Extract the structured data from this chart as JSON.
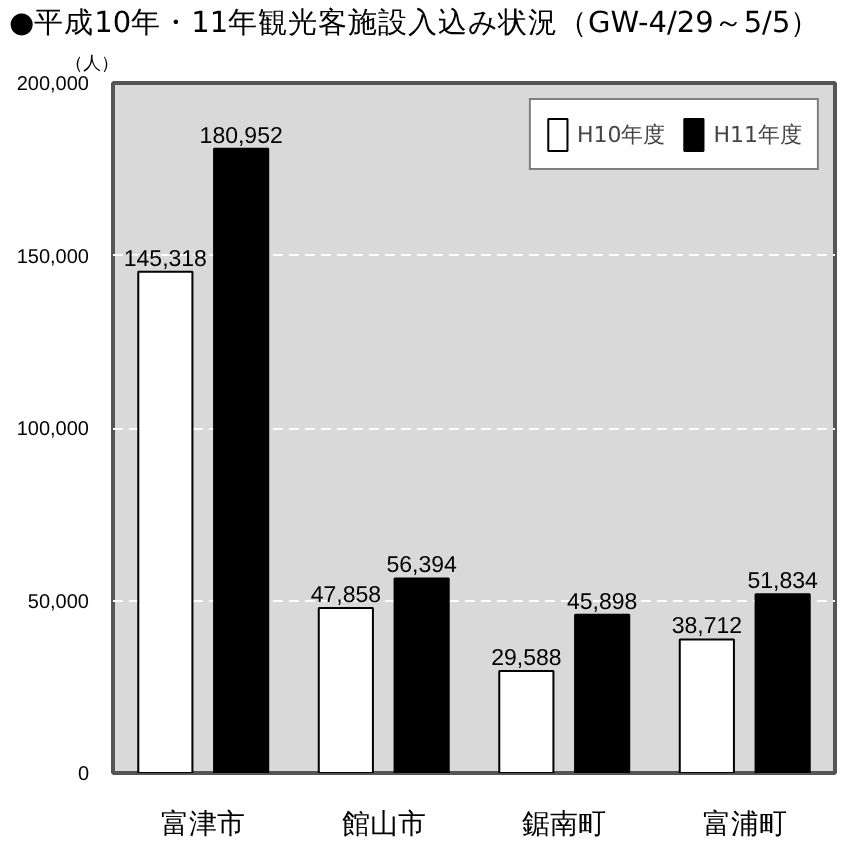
{
  "chart_data": {
    "type": "bar",
    "title": "●平成10年・11年観光客施設入込み状況（GW-4/29～5/5）",
    "ylabel": "（人）",
    "categories": [
      "富津市",
      "館山市",
      "鋸南町",
      "富浦町"
    ],
    "series": [
      {
        "name": "H10年度",
        "color": "#ffffff",
        "values": [
          145318,
          47858,
          29588,
          38712
        ],
        "value_labels": [
          "145,318",
          "47,858",
          "29,588",
          "38,712"
        ]
      },
      {
        "name": "H11年度",
        "color": "#000000",
        "values": [
          180952,
          56394,
          45898,
          51834
        ],
        "value_labels": [
          "180,952",
          "56,394",
          "45,898",
          "51,834"
        ]
      }
    ],
    "ylim": [
      0,
      200000
    ],
    "yticks": [
      0,
      {
        "value": 50000,
        "label": "50,000"
      },
      {
        "value": 100000,
        "label": "100,000"
      },
      {
        "value": 150000,
        "label": "150,000"
      },
      {
        "value": 200000,
        "label": "200,000"
      }
    ],
    "grid": "y",
    "legend": "top right"
  }
}
